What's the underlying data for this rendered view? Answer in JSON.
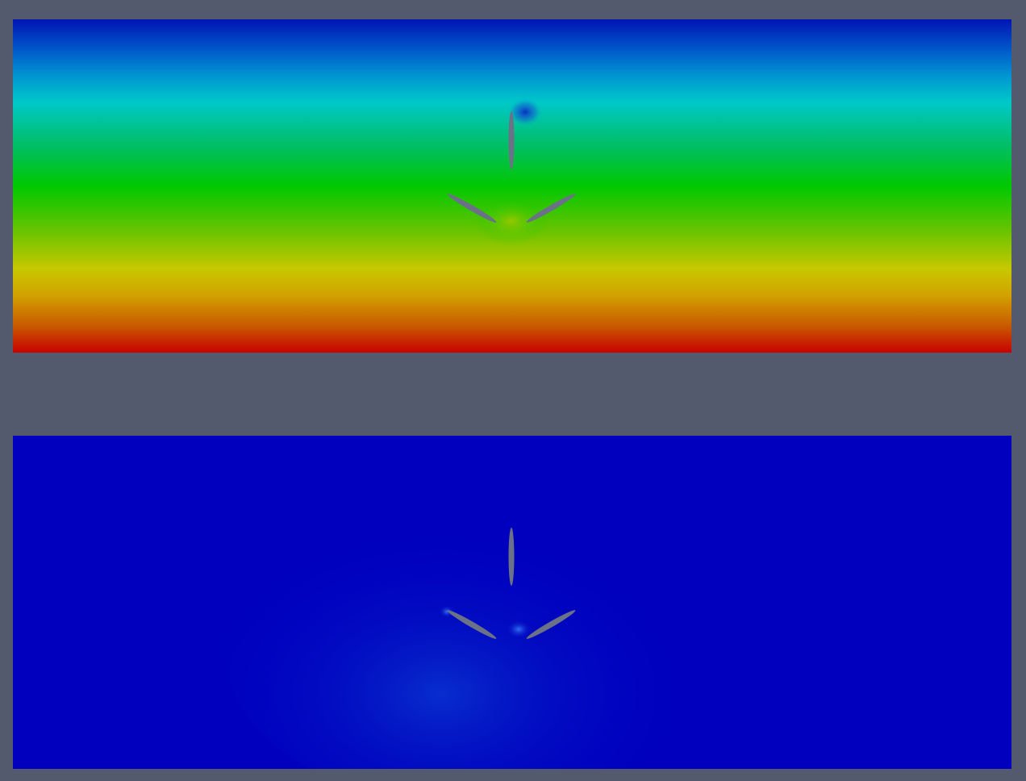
{
  "app": {
    "background_color": "#535a6e",
    "blade_color": "#6b7186",
    "views": [
      {
        "name": "upper-field-view",
        "colormap": "rainbow",
        "gradient_direction": "bottom-to-top",
        "stops": [
          "#0014b4",
          "#0064d2",
          "#00c8c8",
          "#00be5a",
          "#00c800",
          "#78c800",
          "#c8c800",
          "#d29600",
          "#c83200",
          "#c80000"
        ],
        "feature": "three-blade-rotor"
      },
      {
        "name": "lower-field-view",
        "colormap": "rainbow",
        "base_color": "#0000be",
        "feature": "three-blade-rotor"
      }
    ]
  }
}
